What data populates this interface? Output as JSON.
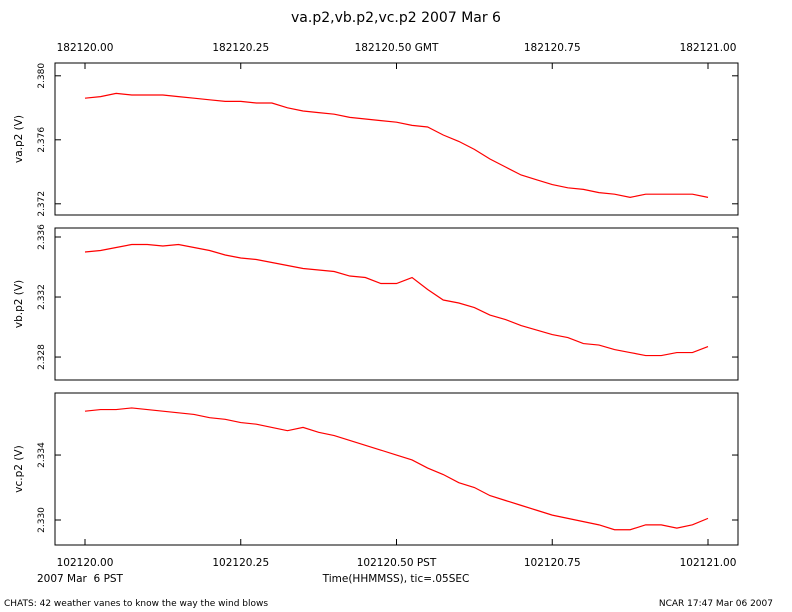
{
  "chart_data": [
    {
      "type": "line",
      "title": "va.p2,vb.p2,vc.p2 2007 Mar 6",
      "ylabel": "va.p2 (V)",
      "color": "#ff0000",
      "x": [
        182120,
        182120.025,
        182120.05,
        182120.075,
        182120.1,
        182120.125,
        182120.15,
        182120.175,
        182120.2,
        182120.225,
        182120.25,
        182120.275,
        182120.3,
        182120.325,
        182120.35,
        182120.375,
        182120.4,
        182120.425,
        182120.45,
        182120.475,
        182120.5,
        182120.525,
        182120.55,
        182120.575,
        182120.6,
        182120.625,
        182120.65,
        182120.675,
        182120.7,
        182120.725,
        182120.75,
        182120.775,
        182120.8,
        182120.825,
        182120.85,
        182120.875,
        182120.9,
        182120.925,
        182120.95,
        182120.975,
        182121
      ],
      "values": [
        2.3786,
        2.3787,
        2.3789,
        2.3788,
        2.3788,
        2.3788,
        2.3787,
        2.3786,
        2.3785,
        2.3784,
        2.3784,
        2.3783,
        2.3783,
        2.378,
        2.3778,
        2.3777,
        2.3776,
        2.3774,
        2.3773,
        2.3772,
        2.3771,
        2.3769,
        2.3768,
        2.3763,
        2.3759,
        2.3754,
        2.3748,
        2.3743,
        2.3738,
        2.3735,
        2.3732,
        2.373,
        2.3729,
        2.3727,
        2.3726,
        2.3724,
        2.3726,
        2.3726,
        2.3726,
        2.3726,
        2.3724
      ],
      "xlim": [
        182120,
        182121
      ],
      "xticks": [
        {
          "value": 182120,
          "label": "182120.00"
        },
        {
          "value": 182120.25,
          "label": "182120.25"
        },
        {
          "value": 182120.5,
          "label": "182120.50 GMT"
        },
        {
          "value": 182120.75,
          "label": "182120.75"
        },
        {
          "value": 182121,
          "label": "182121.00"
        }
      ],
      "ylim": [
        2.3713,
        2.3808
      ],
      "yticks": [
        {
          "value": 2.372,
          "label": "2.372"
        },
        {
          "value": 2.376,
          "label": "2.376"
        },
        {
          "value": 2.38,
          "label": "2.380"
        }
      ]
    },
    {
      "type": "line",
      "ylabel": "vb.p2 (V)",
      "color": "#ff0000",
      "x": [
        182120,
        182120.025,
        182120.05,
        182120.075,
        182120.1,
        182120.125,
        182120.15,
        182120.175,
        182120.2,
        182120.225,
        182120.25,
        182120.275,
        182120.3,
        182120.325,
        182120.35,
        182120.375,
        182120.4,
        182120.425,
        182120.45,
        182120.475,
        182120.5,
        182120.525,
        182120.55,
        182120.575,
        182120.6,
        182120.625,
        182120.65,
        182120.675,
        182120.7,
        182120.725,
        182120.75,
        182120.775,
        182120.8,
        182120.825,
        182120.85,
        182120.875,
        182120.9,
        182120.925,
        182120.95,
        182120.975,
        182121
      ],
      "values": [
        2.335,
        2.3351,
        2.3353,
        2.3355,
        2.3355,
        2.3354,
        2.3355,
        2.3353,
        2.3351,
        2.3348,
        2.3346,
        2.3345,
        2.3343,
        2.3341,
        2.3339,
        2.3338,
        2.3337,
        2.3334,
        2.3333,
        2.3329,
        2.3329,
        2.3333,
        2.3325,
        2.3318,
        2.3316,
        2.3313,
        2.3308,
        2.3305,
        2.3301,
        2.3298,
        2.3295,
        2.3293,
        2.3289,
        2.3288,
        2.3285,
        2.3283,
        2.3281,
        2.3281,
        2.3283,
        2.3283,
        2.3287
      ],
      "xlim": [
        182120,
        182121
      ],
      "ylim": [
        2.32647,
        2.3366
      ],
      "yticks": [
        {
          "value": 2.328,
          "label": "2.328"
        },
        2.332,
        {
          "value": 2.336,
          "label": "2.336"
        }
      ]
    },
    {
      "type": "line",
      "ylabel": "vc.p2 (V)",
      "xlabel": "Time(HHMMSS), tic=.05SEC",
      "date_label": "2007 Mar  6 PST",
      "color": "#ff0000",
      "x": [
        182120,
        182120.025,
        182120.05,
        182120.075,
        182120.1,
        182120.125,
        182120.15,
        182120.175,
        182120.2,
        182120.225,
        182120.25,
        182120.275,
        182120.3,
        182120.325,
        182120.35,
        182120.375,
        182120.4,
        182120.425,
        182120.45,
        182120.475,
        182120.5,
        182120.525,
        182120.55,
        182120.575,
        182120.6,
        182120.625,
        182120.65,
        182120.675,
        182120.7,
        182120.725,
        182120.75,
        182120.775,
        182120.8,
        182120.825,
        182120.85,
        182120.875,
        182120.9,
        182120.925,
        182120.95,
        182120.975,
        182121
      ],
      "values": [
        2.3367,
        2.3368,
        2.3368,
        2.3369,
        2.3368,
        2.3367,
        2.3366,
        2.3365,
        2.3363,
        2.3362,
        2.336,
        2.3359,
        2.3357,
        2.3355,
        2.3357,
        2.3354,
        2.3352,
        2.3349,
        2.3346,
        2.3343,
        2.334,
        2.3337,
        2.3332,
        2.3328,
        2.3323,
        2.332,
        2.3315,
        2.3312,
        2.3309,
        2.3306,
        2.3303,
        2.3301,
        2.3299,
        2.3297,
        2.3294,
        2.3294,
        2.3297,
        2.3297,
        2.3295,
        2.3297,
        2.3301
      ],
      "xlim": [
        182120,
        182121
      ],
      "x2lim": [
        102120,
        102121
      ],
      "x2ticks": [
        {
          "value": 102120,
          "label": "102120.00"
        },
        {
          "value": 102120.25,
          "label": "102120.25"
        },
        {
          "value": 102120.5,
          "label": "102120.50 PST"
        },
        {
          "value": 102120.75,
          "label": "102120.75"
        },
        {
          "value": 102121,
          "label": "102121.00"
        }
      ],
      "ylim": [
        2.32846,
        2.33782
      ],
      "yticks": [
        {
          "value": 2.33,
          "label": "2.330"
        },
        2.334
      ]
    }
  ],
  "footer": {
    "left": "CHATS: 42 weather vanes to know the way the wind blows",
    "right": "NCAR 17:47 Mar 06 2007"
  }
}
